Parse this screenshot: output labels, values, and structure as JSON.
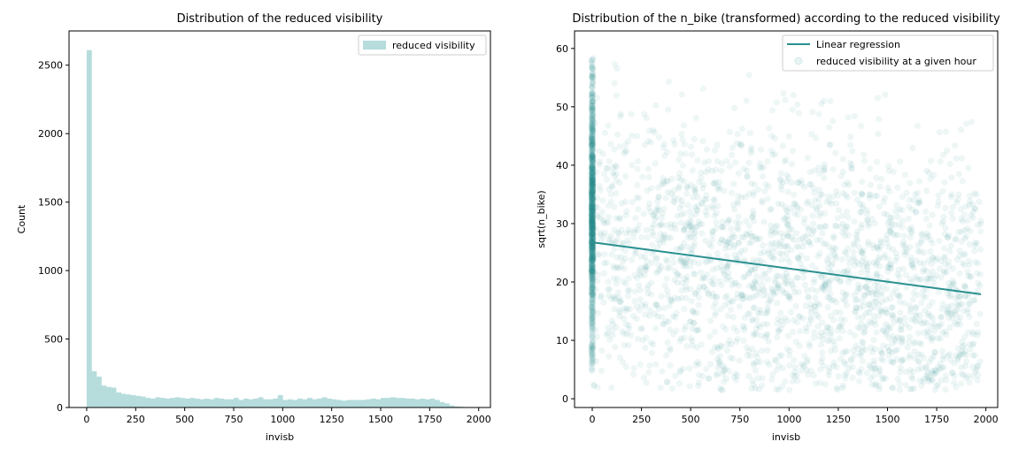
{
  "chart_data": [
    {
      "type": "histogram",
      "title": "Distribution of the reduced visibility",
      "xlabel": "invisb",
      "ylabel": "Count",
      "xlim": [
        -90,
        2060
      ],
      "ylim": [
        0,
        2750
      ],
      "xticks": [
        0,
        250,
        500,
        750,
        1000,
        1250,
        1500,
        1750,
        2000
      ],
      "yticks": [
        0,
        500,
        1000,
        1500,
        2000,
        2500
      ],
      "bin_width": 25,
      "bins_start": 0,
      "counts": [
        2610,
        265,
        225,
        160,
        150,
        145,
        110,
        100,
        95,
        90,
        85,
        80,
        70,
        65,
        75,
        70,
        65,
        70,
        75,
        70,
        65,
        70,
        65,
        60,
        65,
        60,
        70,
        65,
        60,
        60,
        70,
        55,
        65,
        60,
        65,
        75,
        60,
        60,
        65,
        90,
        55,
        60,
        55,
        65,
        60,
        70,
        60,
        65,
        75,
        65,
        60,
        55,
        50,
        55,
        55,
        55,
        55,
        60,
        65,
        60,
        70,
        70,
        75,
        70,
        70,
        65,
        65,
        60,
        65,
        60,
        65,
        55,
        40,
        30,
        15,
        8,
        5,
        3
      ],
      "legend": [
        {
          "label": "reduced visibility",
          "color": "#b6dcdc"
        }
      ],
      "legend_position": "top-right",
      "color": "#b6dcdc"
    },
    {
      "type": "scatter",
      "title": "Distribution of the n_bike (transformed) according to the reduced visibility",
      "xlabel": "invisb",
      "ylabel": "sqrt(n_bike)",
      "xlim": [
        -90,
        2060
      ],
      "ylim": [
        -1.5,
        63
      ],
      "xticks": [
        0,
        250,
        500,
        750,
        1000,
        1250,
        1500,
        1750,
        2000
      ],
      "yticks": [
        0,
        10,
        20,
        30,
        40,
        50,
        60
      ],
      "regression": {
        "x": [
          0,
          1975
        ],
        "y": [
          26.8,
          17.9
        ],
        "color": "#2a9090"
      },
      "point_color": "#2a9090",
      "point_alpha": 0.08,
      "cluster_at_zero": {
        "x": 0,
        "y_range": [
          4.5,
          58.5
        ]
      },
      "spread": {
        "x_range": [
          5,
          1975
        ],
        "y_range": [
          1.5,
          59.5
        ]
      },
      "legend": [
        {
          "label": "Linear regression",
          "color": "#2a9090",
          "marker": "line"
        },
        {
          "label": "reduced visibility at a given hour",
          "color": "#2a9090",
          "marker": "circle"
        }
      ],
      "legend_position": "top-right"
    }
  ]
}
